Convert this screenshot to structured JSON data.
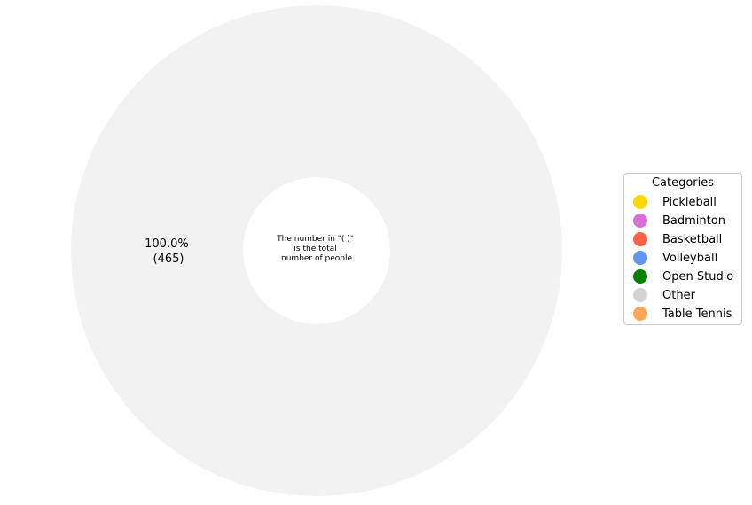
{
  "chart_data": {
    "type": "pie",
    "subtype": "donut",
    "slices": [
      {
        "label": "",
        "value": 465,
        "percent": "100.0%",
        "count_label": "(465)",
        "color": "#f2f2f2"
      }
    ],
    "center_text": [
      "The number in \"( )\"",
      "is the total",
      "number of people"
    ],
    "legend": {
      "title": "Categories",
      "placement": "right",
      "items": [
        {
          "label": "Pickleball",
          "color": "#ffd700"
        },
        {
          "label": "Badminton",
          "color": "#da70d6"
        },
        {
          "label": "Basketball",
          "color": "#ff6347"
        },
        {
          "label": "Volleyball",
          "color": "#6495ed"
        },
        {
          "label": "Open Studio",
          "color": "#008000"
        },
        {
          "label": "Other",
          "color": "#d3d3d3"
        },
        {
          "label": "Table Tennis",
          "color": "#ffa756"
        }
      ]
    }
  }
}
